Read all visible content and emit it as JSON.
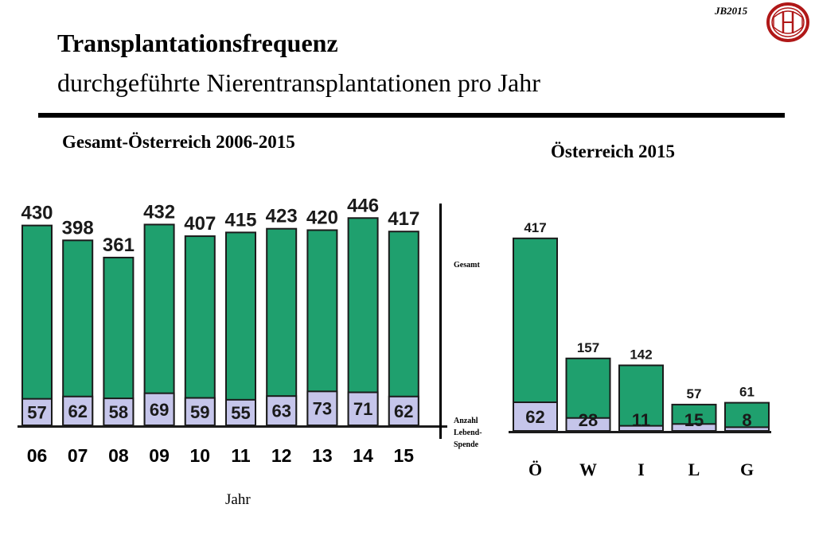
{
  "header": {
    "badge": "JB2015",
    "title": "Transplantationsfrequenz",
    "subtitle": "durchgeführte Nierentransplantationen pro Jahr"
  },
  "legend": {
    "gesamt": "Gesamt",
    "lebend": "Anzahl\nLebend-\nSpende"
  },
  "colors": {
    "total": "#1fa06e",
    "live": "#c5c5ea",
    "edge": "#1b1b1b"
  },
  "chart_data": [
    {
      "type": "bar",
      "title": "Gesamt-Österreich 2006-2015",
      "xlabel": "Jahr",
      "ylabel": "",
      "categories": [
        "06",
        "07",
        "08",
        "09",
        "10",
        "11",
        "12",
        "13",
        "14",
        "15"
      ],
      "series": [
        {
          "name": "Gesamt",
          "values": [
            430,
            398,
            361,
            432,
            407,
            415,
            423,
            420,
            446,
            417
          ]
        },
        {
          "name": "Anzahl Lebend-Spende",
          "values": [
            57,
            62,
            58,
            69,
            59,
            55,
            63,
            73,
            71,
            62
          ]
        }
      ],
      "ylim": [
        0,
        520
      ],
      "grid": false,
      "stacking": "overlay"
    },
    {
      "type": "bar",
      "title": "Österreich 2015",
      "xlabel": "",
      "ylabel": "",
      "categories": [
        "Ö",
        "W",
        "I",
        "L",
        "G"
      ],
      "series": [
        {
          "name": "Gesamt",
          "values": [
            417,
            157,
            142,
            57,
            61
          ]
        },
        {
          "name": "Anzahl Lebend-Spende",
          "values": [
            62,
            28,
            11,
            15,
            8
          ]
        }
      ],
      "ylim": [
        0,
        520
      ],
      "grid": false,
      "stacking": "overlay"
    }
  ]
}
